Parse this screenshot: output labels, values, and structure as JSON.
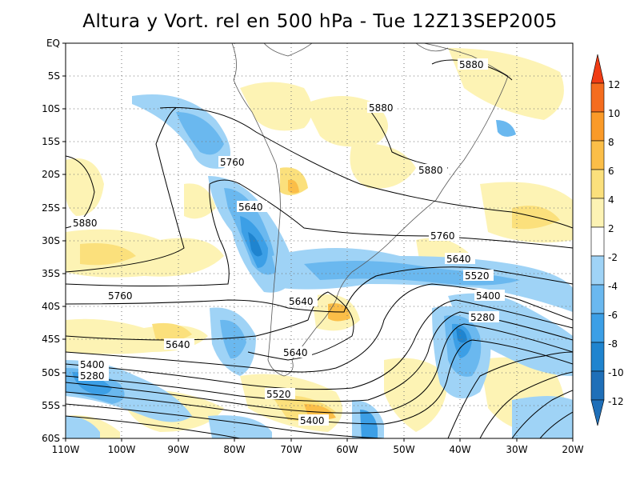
{
  "title": "Altura y Vort. rel en 500 hPa - Tue 12Z13SEP2005",
  "axes": {
    "lat_labels": [
      "EQ",
      "5S",
      "10S",
      "15S",
      "20S",
      "25S",
      "30S",
      "35S",
      "40S",
      "45S",
      "50S",
      "55S",
      "60S"
    ],
    "lon_labels": [
      "110W",
      "100W",
      "90W",
      "80W",
      "70W",
      "60W",
      "50W",
      "40W",
      "30W",
      "20W"
    ]
  },
  "colorbar": {
    "labels": [
      "12",
      "10",
      "8",
      "6",
      "4",
      "2",
      "-2",
      "-4",
      "-6",
      "-8",
      "-10",
      "-12"
    ],
    "colors": [
      "#f03c14",
      "#f46c1e",
      "#fa9a28",
      "#fbbe48",
      "#fbe07c",
      "#fdf3b4",
      "#ffffff",
      "#9fd3f6",
      "#6ab8ef",
      "#3c9fe6",
      "#1f84cf",
      "#1f6fb8"
    ]
  },
  "contour_labels": [
    {
      "text": "5880",
      "id": "c1"
    },
    {
      "text": "5880",
      "id": "c2"
    },
    {
      "text": "5880",
      "id": "c3"
    },
    {
      "text": "5880",
      "id": "c4"
    },
    {
      "text": "5760",
      "id": "c5"
    },
    {
      "text": "5760",
      "id": "c6"
    },
    {
      "text": "5760",
      "id": "c7"
    },
    {
      "text": "5640",
      "id": "c8"
    },
    {
      "text": "5640",
      "id": "c9"
    },
    {
      "text": "5640",
      "id": "c10"
    },
    {
      "text": "5640",
      "id": "c11"
    },
    {
      "text": "5640",
      "id": "c12"
    },
    {
      "text": "5520",
      "id": "c13"
    },
    {
      "text": "5520",
      "id": "c14"
    },
    {
      "text": "5400",
      "id": "c15"
    },
    {
      "text": "5400",
      "id": "c16"
    },
    {
      "text": "5400",
      "id": "c17"
    },
    {
      "text": "5280",
      "id": "c18"
    },
    {
      "text": "5280",
      "id": "c19"
    }
  ],
  "colors": {
    "contour": "#000000",
    "coast": "#555555",
    "grid": "#777777"
  }
}
